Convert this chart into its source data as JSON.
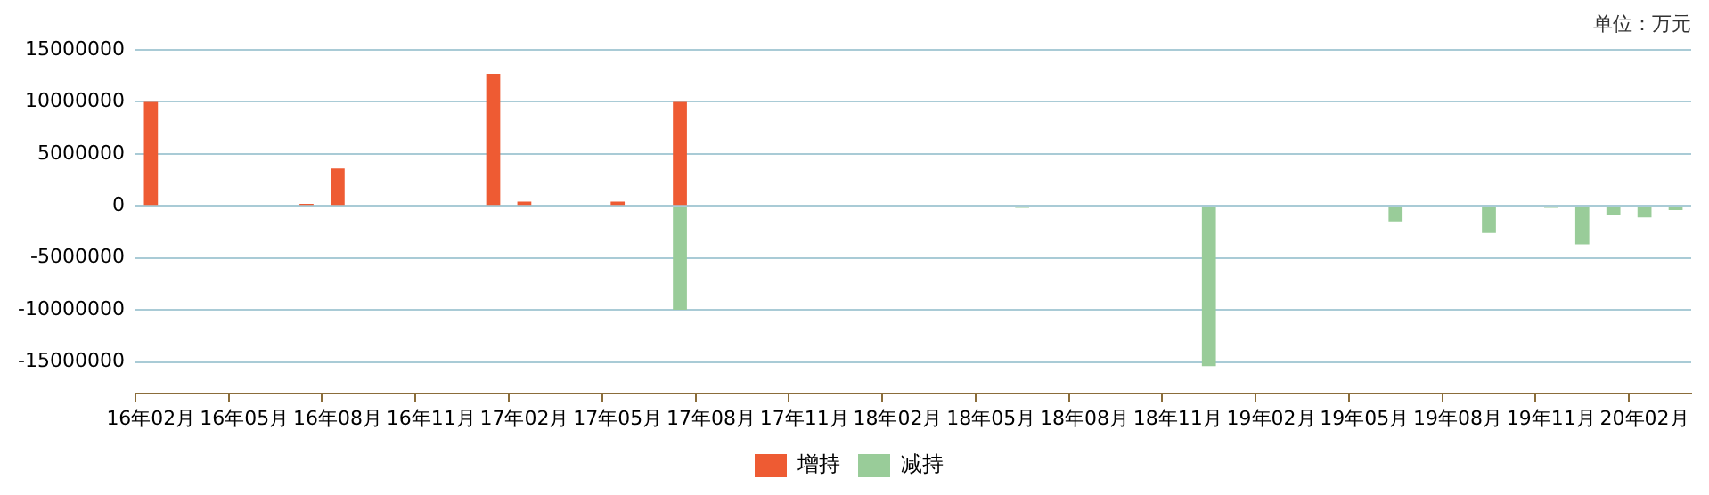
{
  "chart_data": {
    "type": "bar",
    "stacked": true,
    "categories": [
      "16年02月",
      null,
      null,
      "16年05月",
      null,
      null,
      "16年08月",
      null,
      null,
      "16年11月",
      null,
      null,
      "17年02月",
      null,
      null,
      "17年05月",
      null,
      null,
      "17年08月",
      null,
      null,
      "17年11月",
      null,
      null,
      "18年02月",
      null,
      null,
      "18年05月",
      null,
      null,
      "18年08月",
      null,
      null,
      "18年11月",
      null,
      null,
      "19年02月",
      null,
      null,
      "19年05月",
      null,
      null,
      "19年08月",
      null,
      null,
      "19年11月",
      null,
      null,
      "20年02月",
      null
    ],
    "series": [
      {
        "name": "增持",
        "color": "#ee5b33",
        "values": [
          10000000,
          null,
          null,
          null,
          null,
          200000,
          3600000,
          null,
          null,
          null,
          null,
          12700000,
          400000,
          null,
          null,
          400000,
          null,
          10000000,
          null,
          null,
          null,
          null,
          null,
          null,
          null,
          null,
          null,
          null,
          null,
          null,
          null,
          null,
          null,
          null,
          null,
          null,
          null,
          null,
          null,
          null,
          null,
          null,
          null,
          null,
          null,
          null,
          null,
          null,
          null,
          null
        ]
      },
      {
        "name": "减持",
        "color": "#99cc99",
        "values": [
          null,
          null,
          null,
          null,
          null,
          null,
          null,
          null,
          null,
          null,
          null,
          null,
          null,
          null,
          null,
          null,
          null,
          -10000000,
          null,
          null,
          null,
          null,
          null,
          null,
          null,
          null,
          null,
          null,
          -200000,
          null,
          null,
          null,
          null,
          null,
          -15400000,
          null,
          null,
          null,
          null,
          null,
          -1500000,
          null,
          null,
          -2600000,
          null,
          -200000,
          -3700000,
          -900000,
          -1100000,
          -400000
        ]
      }
    ],
    "ylim": [
      -18000000,
      15000000
    ],
    "yticks": [
      -15000000,
      -10000000,
      -5000000,
      0,
      5000000,
      10000000,
      15000000
    ],
    "grid": "y",
    "legend": "bottom",
    "annotations": [
      "单位：万元"
    ]
  }
}
